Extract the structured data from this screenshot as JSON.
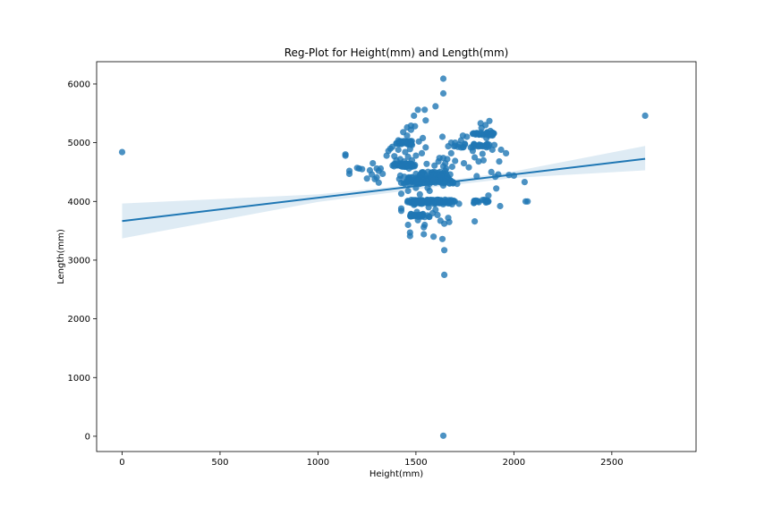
{
  "chart_data": {
    "type": "scatter",
    "title": "Reg-Plot for Height(mm) and Length(mm)",
    "xlabel": "Height(mm)",
    "ylabel": "Length(mm)",
    "xlim": [
      -130,
      2930
    ],
    "ylim": [
      -260,
      6380
    ],
    "xticks": [
      0,
      500,
      1000,
      1500,
      2000,
      2500
    ],
    "yticks": [
      0,
      1000,
      2000,
      3000,
      4000,
      5000,
      6000
    ],
    "grid": false,
    "legend": "none",
    "point_color": "#1f77b4",
    "line_color": "#1f77b4",
    "band_color": "#1f77b4",
    "regression": {
      "x_start": 0,
      "x_end": 2670,
      "y_start": 3665,
      "y_end": 4725,
      "ci_band": [
        {
          "x": 0,
          "lo": 3370,
          "hi": 3965
        },
        {
          "x": 1000,
          "lo": 3990,
          "hi": 4120
        },
        {
          "x": 1550,
          "lo": 4225,
          "hi": 4305
        },
        {
          "x": 2000,
          "lo": 4400,
          "hi": 4510
        },
        {
          "x": 2670,
          "lo": 4530,
          "hi": 4945
        }
      ]
    },
    "points": [
      [
        0,
        4840
      ],
      [
        2670,
        5460
      ],
      [
        1640,
        6090
      ],
      [
        1640,
        5840
      ],
      [
        1640,
        10
      ],
      [
        1645,
        2750
      ],
      [
        1645,
        3170
      ],
      [
        1635,
        3360
      ],
      [
        1140,
        4800
      ],
      [
        1140,
        4780
      ],
      [
        1160,
        4520
      ],
      [
        1160,
        4470
      ],
      [
        1200,
        4570
      ],
      [
        1210,
        4560
      ],
      [
        1225,
        4550
      ],
      [
        1250,
        4390
      ],
      [
        1265,
        4530
      ],
      [
        1275,
        4460
      ],
      [
        1280,
        4650
      ],
      [
        1290,
        4380
      ],
      [
        1300,
        4410
      ],
      [
        1300,
        4560
      ],
      [
        1310,
        4520
      ],
      [
        1310,
        4320
      ],
      [
        1320,
        4560
      ],
      [
        1330,
        4470
      ],
      [
        1350,
        4780
      ],
      [
        1360,
        4860
      ],
      [
        1370,
        4900
      ],
      [
        1380,
        4930
      ],
      [
        1390,
        4770
      ],
      [
        1400,
        4700
      ],
      [
        1400,
        4990
      ],
      [
        1410,
        5040
      ],
      [
        1410,
        4880
      ],
      [
        1415,
        4380
      ],
      [
        1420,
        4440
      ],
      [
        1420,
        4720
      ],
      [
        1425,
        4130
      ],
      [
        1425,
        3880
      ],
      [
        1425,
        3840
      ],
      [
        1430,
        5020
      ],
      [
        1435,
        5180
      ],
      [
        1440,
        4420
      ],
      [
        1440,
        4680
      ],
      [
        1445,
        4840
      ],
      [
        1450,
        4990
      ],
      [
        1450,
        4330
      ],
      [
        1455,
        5260
      ],
      [
        1455,
        5120
      ],
      [
        1460,
        3600
      ],
      [
        1460,
        4760
      ],
      [
        1460,
        4180
      ],
      [
        1465,
        4560
      ],
      [
        1470,
        3980
      ],
      [
        1470,
        3470
      ],
      [
        1470,
        3410
      ],
      [
        1470,
        4890
      ],
      [
        1475,
        5290
      ],
      [
        1475,
        5220
      ],
      [
        1480,
        4960
      ],
      [
        1480,
        4700
      ],
      [
        1480,
        4610
      ],
      [
        1480,
        4410
      ],
      [
        1490,
        4000
      ],
      [
        1490,
        3940
      ],
      [
        1490,
        3750
      ],
      [
        1490,
        5460
      ],
      [
        1495,
        5280
      ],
      [
        1500,
        4780
      ],
      [
        1500,
        4470
      ],
      [
        1500,
        4230
      ],
      [
        1505,
        3820
      ],
      [
        1510,
        5560
      ],
      [
        1510,
        4000
      ],
      [
        1510,
        3680
      ],
      [
        1515,
        5020
      ],
      [
        1520,
        4300
      ],
      [
        1520,
        4120
      ],
      [
        1520,
        3760
      ],
      [
        1530,
        4820
      ],
      [
        1530,
        4480
      ],
      [
        1530,
        3990
      ],
      [
        1535,
        5080
      ],
      [
        1540,
        3560
      ],
      [
        1540,
        3440
      ],
      [
        1545,
        3600
      ],
      [
        1545,
        5560
      ],
      [
        1550,
        5380
      ],
      [
        1550,
        4920
      ],
      [
        1555,
        4640
      ],
      [
        1560,
        4230
      ],
      [
        1560,
        4000
      ],
      [
        1560,
        3760
      ],
      [
        1565,
        3900
      ],
      [
        1570,
        4180
      ],
      [
        1575,
        4450
      ],
      [
        1580,
        4400
      ],
      [
        1585,
        3800
      ],
      [
        1590,
        3400
      ],
      [
        1590,
        4360
      ],
      [
        1595,
        4610
      ],
      [
        1600,
        5620
      ],
      [
        1600,
        4320
      ],
      [
        1600,
        3860
      ],
      [
        1610,
        4000
      ],
      [
        1610,
        3770
      ],
      [
        1615,
        4680
      ],
      [
        1620,
        4740
      ],
      [
        1620,
        4330
      ],
      [
        1620,
        3980
      ],
      [
        1625,
        3670
      ],
      [
        1630,
        4420
      ],
      [
        1635,
        5100
      ],
      [
        1640,
        4740
      ],
      [
        1640,
        4600
      ],
      [
        1640,
        4270
      ],
      [
        1645,
        3620
      ],
      [
        1650,
        4650
      ],
      [
        1650,
        4520
      ],
      [
        1650,
        4380
      ],
      [
        1655,
        4560
      ],
      [
        1660,
        4430
      ],
      [
        1660,
        4720
      ],
      [
        1665,
        4940
      ],
      [
        1665,
        3720
      ],
      [
        1670,
        3650
      ],
      [
        1675,
        4460
      ],
      [
        1680,
        5000
      ],
      [
        1680,
        4820
      ],
      [
        1685,
        4590
      ],
      [
        1690,
        4320
      ],
      [
        1695,
        4940
      ],
      [
        1700,
        4690
      ],
      [
        1700,
        5000
      ],
      [
        1710,
        4300
      ],
      [
        1720,
        3960
      ],
      [
        1730,
        4920
      ],
      [
        1730,
        5040
      ],
      [
        1740,
        5120
      ],
      [
        1745,
        4650
      ],
      [
        1750,
        4980
      ],
      [
        1760,
        5100
      ],
      [
        1770,
        4580
      ],
      [
        1780,
        4920
      ],
      [
        1790,
        4860
      ],
      [
        1800,
        4750
      ],
      [
        1800,
        3660
      ],
      [
        1810,
        4430
      ],
      [
        1815,
        4000
      ],
      [
        1820,
        4680
      ],
      [
        1825,
        4960
      ],
      [
        1830,
        5330
      ],
      [
        1835,
        5250
      ],
      [
        1840,
        4810
      ],
      [
        1845,
        4700
      ],
      [
        1850,
        5150
      ],
      [
        1855,
        5300
      ],
      [
        1860,
        5080
      ],
      [
        1865,
        4980
      ],
      [
        1870,
        4000
      ],
      [
        1870,
        4100
      ],
      [
        1875,
        5370
      ],
      [
        1880,
        5200
      ],
      [
        1885,
        4500
      ],
      [
        1890,
        4880
      ],
      [
        1900,
        4960
      ],
      [
        1905,
        4420
      ],
      [
        1910,
        4220
      ],
      [
        1920,
        4460
      ],
      [
        1925,
        4680
      ],
      [
        1930,
        3920
      ],
      [
        1935,
        4880
      ],
      [
        1960,
        4820
      ],
      [
        1975,
        4450
      ],
      [
        2000,
        4440
      ],
      [
        2055,
        4330
      ],
      [
        2060,
        4000
      ],
      [
        2070,
        4000
      ]
    ],
    "clusters": [
      {
        "x0": 1455,
        "x1": 1700,
        "y": 4000,
        "n": 80
      },
      {
        "x0": 1470,
        "x1": 1690,
        "y": 3980,
        "n": 40
      },
      {
        "x0": 1455,
        "x1": 1670,
        "y": 4380,
        "n": 70
      },
      {
        "x0": 1420,
        "x1": 1700,
        "y": 4330,
        "n": 40
      },
      {
        "x0": 1380,
        "x1": 1500,
        "y": 4620,
        "n": 40
      },
      {
        "x0": 1400,
        "x1": 1480,
        "y": 5000,
        "n": 30
      },
      {
        "x0": 1780,
        "x1": 1900,
        "y": 5150,
        "n": 30
      },
      {
        "x0": 1700,
        "x1": 1880,
        "y": 4950,
        "n": 25
      },
      {
        "x0": 1470,
        "x1": 1580,
        "y": 3760,
        "n": 25
      },
      {
        "x0": 1520,
        "x1": 1660,
        "y": 4480,
        "n": 30
      },
      {
        "x0": 1780,
        "x1": 1870,
        "y": 4000,
        "n": 15
      }
    ]
  }
}
